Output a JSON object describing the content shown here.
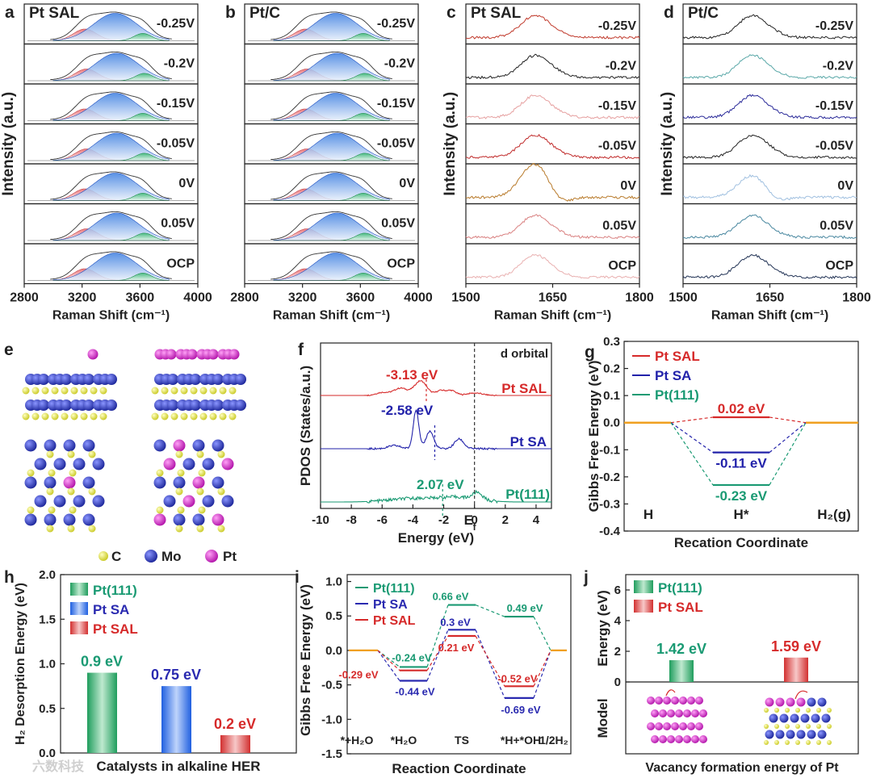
{
  "panel_letters": [
    "a",
    "b",
    "c",
    "d",
    "e",
    "f",
    "g",
    "h",
    "i",
    "j"
  ],
  "potentials": [
    "-0.25V",
    "-0.2V",
    "-0.15V",
    "-0.05V",
    "0V",
    "0.05V",
    "OCP"
  ],
  "colors": {
    "red": "#d62a2a",
    "blue": "#2222aa",
    "green": "#1a9a73",
    "orange": "#f0a020",
    "mo": "#2533b8",
    "c": "#e6e650",
    "pt": "#d830c8"
  },
  "chart_data": [
    {
      "panel": "a",
      "type": "line",
      "title": "Pt SAL",
      "ylabel": "Intensity (a.u.)",
      "xlabel": "Raman Shift (cm⁻¹)",
      "xlim": [
        2800,
        4000
      ],
      "xticks": [
        "2800",
        "3200",
        "3600",
        "4000"
      ],
      "series_labels": [
        "-0.25V",
        "-0.2V",
        "-0.15V",
        "-0.05V",
        "0V",
        "0.05V",
        "OCP"
      ]
    },
    {
      "panel": "b",
      "type": "line",
      "title": "Pt/C",
      "xlabel": "Raman Shift (cm⁻¹)",
      "xlim": [
        2800,
        4000
      ],
      "xticks": [
        "2800",
        "3200",
        "3600",
        "4000"
      ],
      "series_labels": [
        "-0.25V",
        "-0.2V",
        "-0.15V",
        "-0.05V",
        "0V",
        "0.05V",
        "OCP"
      ]
    },
    {
      "panel": "c",
      "type": "line",
      "title": "Pt SAL",
      "ylabel": "Intensity (a.u.)",
      "xlabel": "Raman Shift (cm⁻¹)",
      "xlim": [
        1500,
        1800
      ],
      "xticks": [
        "1500",
        "1650",
        "1800"
      ],
      "series_labels": [
        "-0.25V",
        "-0.2V",
        "-0.15V",
        "-0.05V",
        "0V",
        "0.05V",
        "OCP"
      ]
    },
    {
      "panel": "d",
      "type": "line",
      "title": "Pt/C",
      "ylabel": "Intensity (a.u.)",
      "xlabel": "Raman Shift (cm⁻¹)",
      "xlim": [
        1500,
        1800
      ],
      "xticks": [
        "1500",
        "1650",
        "1800"
      ],
      "series_labels": [
        "-0.25V",
        "-0.2V",
        "-0.15V",
        "-0.05V",
        "0V",
        "0.05V",
        "OCP"
      ]
    },
    {
      "panel": "f",
      "type": "line",
      "ylabel": "PDOS (States/a.u.)",
      "xlabel": "Energy (eV)",
      "xlim": [
        -10,
        5
      ],
      "xticks": [
        "-10",
        "-8",
        "-6",
        "-4",
        "-2",
        "0",
        "2",
        "4"
      ],
      "annotation": "d orbital",
      "fermi_label": "E",
      "fermi_sub": "f",
      "series": [
        {
          "name": "Pt SAL",
          "center": "-3.13 eV"
        },
        {
          "name": "Pt SA",
          "center": "-2.58 eV"
        },
        {
          "name": "Pt(111)",
          "center": "2.07 eV"
        }
      ]
    },
    {
      "panel": "g",
      "type": "line",
      "ylabel": "Gibbs Free Energy (eV)",
      "xlabel": "Recation Coordinate",
      "ylim": [
        -0.4,
        0.3
      ],
      "yticks": [
        "0.3",
        "0.2",
        "0.1",
        "0.0",
        "-0.1",
        "-0.2",
        "-0.3",
        "-0.4"
      ],
      "categories": [
        "H",
        "H*",
        "H₂(g)"
      ],
      "series": [
        {
          "name": "Pt SAL",
          "values": [
            0,
            0.02,
            0
          ],
          "label": "0.02 eV"
        },
        {
          "name": "Pt SA",
          "values": [
            0,
            -0.11,
            0
          ],
          "label": "-0.11 eV"
        },
        {
          "name": "Pt(111)",
          "values": [
            0,
            -0.23,
            0
          ],
          "label": "-0.23 eV"
        }
      ]
    },
    {
      "panel": "h",
      "type": "bar",
      "ylabel": "H₂ Desorption Energy (eV)",
      "xlabel": "Catalysts in alkaline HER",
      "ylim": [
        0,
        2.0
      ],
      "yticks": [
        "0.0",
        "0.5",
        "1.0",
        "1.5",
        "2.0"
      ],
      "categories": [
        "Pt(111)",
        "Pt SA",
        "Pt SAL"
      ],
      "values": [
        0.9,
        0.75,
        0.2
      ],
      "value_labels": [
        "0.9 eV",
        "0.75 eV",
        "0.2 eV"
      ]
    },
    {
      "panel": "i",
      "type": "line",
      "ylabel": "Gibbs Free Energy (eV)",
      "xlabel": "Reaction Coordinate",
      "ylim": [
        -1.5,
        1.1
      ],
      "yticks": [
        "1.0",
        "0.5",
        "0.0",
        "-0.5",
        "-1.0",
        "-1.5"
      ],
      "categories": [
        "*+H₂O",
        "*H₂O",
        "TS",
        "*H+*OH",
        "1/2H₂"
      ],
      "series": [
        {
          "name": "Pt(111)",
          "values": [
            0,
            -0.24,
            0.66,
            0.49,
            0
          ],
          "labels": [
            "",
            "-0.24 eV",
            "0.66 eV",
            "0.49 eV",
            ""
          ]
        },
        {
          "name": "Pt SA",
          "values": [
            0,
            -0.44,
            0.3,
            -0.69,
            0
          ],
          "labels": [
            "",
            "-0.44 eV",
            "0.3 eV",
            "-0.69 eV",
            ""
          ]
        },
        {
          "name": "Pt SAL",
          "values": [
            0,
            -0.29,
            0.21,
            -0.52,
            0
          ],
          "labels": [
            "",
            "-0.29 eV",
            "0.21 eV",
            "-0.52 eV",
            ""
          ]
        }
      ]
    },
    {
      "panel": "j",
      "type": "bar",
      "ylabel": "Energy (eV)",
      "ylabel2": "Model",
      "xlabel": "Vacancy formation energy of Pt",
      "ylim": [
        0,
        7
      ],
      "yticks": [
        "0",
        "2",
        "4",
        "6"
      ],
      "categories": [
        "Pt(111)",
        "Pt SAL"
      ],
      "values": [
        1.42,
        1.59
      ],
      "value_labels": [
        "1.42 eV",
        "1.59 eV"
      ]
    }
  ],
  "legend_e": {
    "c": "C",
    "mo": "Mo",
    "pt": "Pt"
  },
  "watermark": "六数科技"
}
